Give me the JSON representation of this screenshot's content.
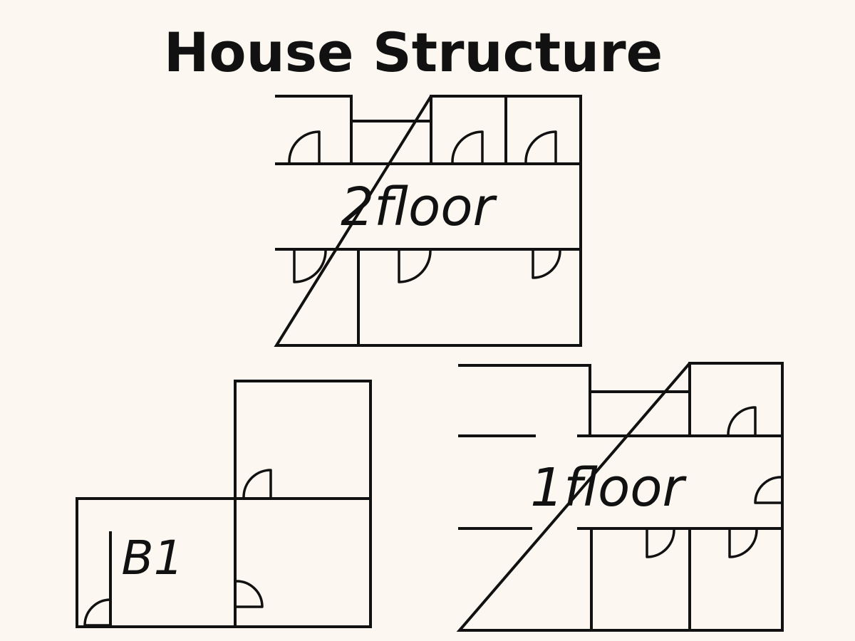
{
  "title": "House Structure",
  "colors": {
    "background": "#fcf8f1",
    "ink": "#111111"
  },
  "floors": [
    {
      "id": "second-floor",
      "label": "2floor"
    },
    {
      "id": "basement",
      "label": "B1"
    },
    {
      "id": "first-floor",
      "label": "1floor"
    }
  ]
}
